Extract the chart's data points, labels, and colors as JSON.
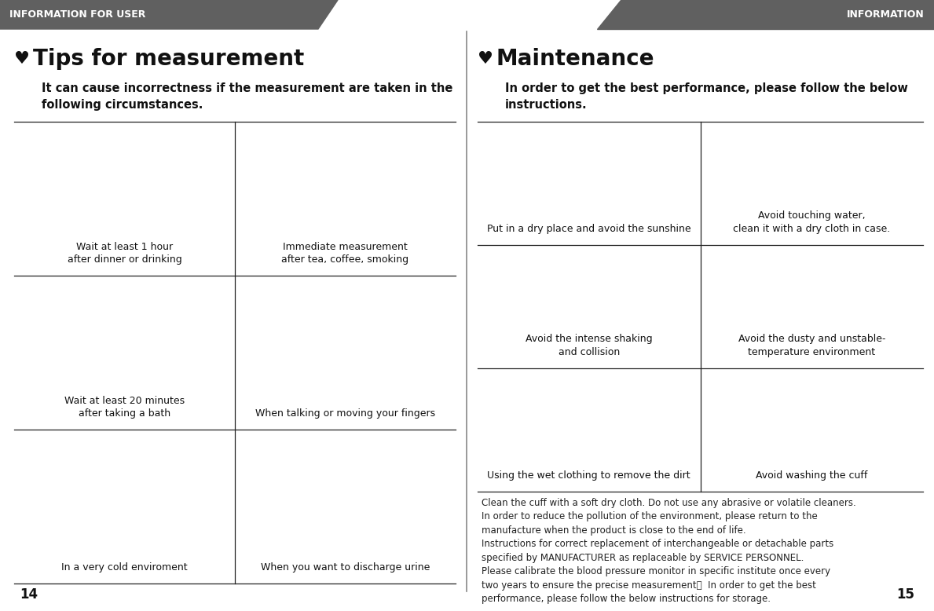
{
  "bg_color": "#ffffff",
  "header_color": "#606060",
  "header_text_color": "#ffffff",
  "header_left": "INFORMATION FOR USER",
  "header_right": "INFORMATION",
  "page_num_left": "14",
  "page_num_right": "15",
  "left_section": {
    "heart_color": "#111111",
    "title": "Tips for measurement",
    "subtitle": "It can cause incorrectness if the measurement are taken in the\nfollowing circumstances.",
    "cells": [
      {
        "label": "Wait at least 1 hour\nafter dinner or drinking",
        "col": 0,
        "row": 0
      },
      {
        "label": "Immediate measurement\nafter tea, coffee, smoking",
        "col": 1,
        "row": 0
      },
      {
        "label": "Wait at least 20 minutes\nafter taking a bath",
        "col": 0,
        "row": 1
      },
      {
        "label": "When talking or moving your fingers",
        "col": 1,
        "row": 1
      },
      {
        "label": "In a very cold enviroment",
        "col": 0,
        "row": 2
      },
      {
        "label": "When you want to discharge urine",
        "col": 1,
        "row": 2
      }
    ]
  },
  "right_section": {
    "heart_color": "#111111",
    "title": "Maintenance",
    "subtitle": "In order to get the best performance, please follow the below\ninstructions.",
    "cells": [
      {
        "label": "Put in a dry place and avoid the sunshine",
        "col": 0,
        "row": 0
      },
      {
        "label": "Avoid touching water,\nclean it with a dry cloth in case.",
        "col": 1,
        "row": 0
      },
      {
        "label": "Avoid the intense shaking\nand collision",
        "col": 0,
        "row": 1
      },
      {
        "label": "Avoid the dusty and unstable-\ntemperature environment",
        "col": 1,
        "row": 1
      },
      {
        "label": "Using the wet clothing to remove the dirt",
        "col": 0,
        "row": 2
      },
      {
        "label": "Avoid washing the cuff",
        "col": 1,
        "row": 2
      }
    ],
    "footer_text": "Clean the cuff with a soft dry cloth. Do not use any abrasive or volatile cleaners.\nIn order to reduce the pollution of the environment, please return to the\nmanufacture when the product is close to the end of life.\nInstructions for correct replacement of interchangeable or detachable parts\nspecified by MANUFACTURER as replaceable by SERVICE PERSONNEL.\nPlease calibrate the blood pressure monitor in specific institute once every\ntwo years to ensure the precise measurement。  In order to get the best\nperformance, please follow the below instructions for storage."
  },
  "grid_line_color": "#222222",
  "center_divider_color": "#888888",
  "title_fontsize": 20,
  "subtitle_fontsize": 10.5,
  "cell_label_fontsize": 9,
  "header_fontsize": 9,
  "footer_fontsize": 8.5,
  "page_num_fontsize": 12
}
